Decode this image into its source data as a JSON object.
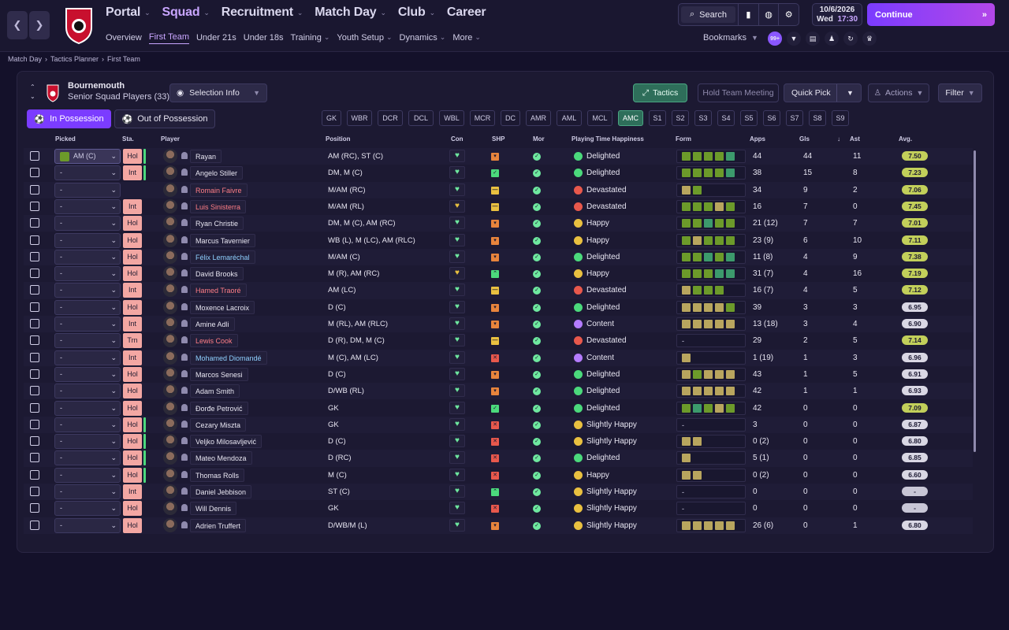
{
  "nav": {
    "main": [
      {
        "label": "Portal",
        "active": false
      },
      {
        "label": "Squad",
        "active": true
      },
      {
        "label": "Recruitment",
        "active": false
      },
      {
        "label": "Match Day",
        "active": false
      },
      {
        "label": "Club",
        "active": false
      },
      {
        "label": "Career",
        "active": false
      }
    ],
    "sub": [
      {
        "label": "Overview",
        "dropdown": false,
        "active": false
      },
      {
        "label": "First Team",
        "dropdown": false,
        "active": true
      },
      {
        "label": "Under 21s",
        "dropdown": false,
        "active": false
      },
      {
        "label": "Under 18s",
        "dropdown": false,
        "active": false
      },
      {
        "label": "Training",
        "dropdown": true,
        "active": false
      },
      {
        "label": "Youth Setup",
        "dropdown": true,
        "active": false
      },
      {
        "label": "Dynamics",
        "dropdown": true,
        "active": false
      },
      {
        "label": "More",
        "dropdown": true,
        "active": false
      }
    ]
  },
  "toolbar": {
    "search_label": "Search",
    "bookmarks_label": "Bookmarks",
    "badge_count": "99+"
  },
  "date": {
    "date": "10/6/2026",
    "day": "Wed",
    "time": "17:30"
  },
  "continue_label": "Continue",
  "breadcrumb": [
    "Match Day",
    "Tactics Planner",
    "First Team"
  ],
  "team": {
    "name": "Bournemouth",
    "subtitle": "Senior Squad Players (33)"
  },
  "buttons": {
    "selection_info": "Selection Info",
    "tactics": "Tactics",
    "hold_meeting": "Hold Team Meeting",
    "quick_pick": "Quick Pick",
    "actions": "Actions",
    "filter": "Filter",
    "in_possession": "In Possession",
    "out_of_possession": "Out of Possession"
  },
  "positions": [
    "GK",
    "WBR",
    "DCR",
    "DCL",
    "WBL",
    "MCR",
    "DC",
    "AMR",
    "AML",
    "MCL",
    "AMC",
    "S1",
    "S2",
    "S3",
    "S4",
    "S5",
    "S6",
    "S7",
    "S8",
    "S9"
  ],
  "active_position": "AMC",
  "columns": {
    "picked": "Picked",
    "sta": "Sta.",
    "player": "Player",
    "position": "Position",
    "con": "Con",
    "shp": "SHP",
    "mor": "Mor",
    "happiness": "Playing Time Happiness",
    "form": "Form",
    "apps": "Apps",
    "gls": "Gls",
    "ast": "Ast",
    "avg": "Avg."
  },
  "colors": {
    "accent": "#7b3cff",
    "tactics_green": "#2e6e5a",
    "status_red": "#f3a7a3",
    "form_green": "#6c9a2a",
    "form_teal": "#3c9a6c",
    "form_olive": "#b8a55e"
  },
  "players": [
    {
      "picked": "AM (C)",
      "sta": "Hol",
      "name": "Rayan",
      "name_style": "normal",
      "position": "AM (RC), ST (C)",
      "con": "good",
      "shp": "up",
      "happiness": "Delighted",
      "form": [
        "g",
        "g",
        "g",
        "g",
        "t"
      ],
      "apps": "44",
      "gls": "44",
      "ast": "11",
      "avg": "7.50"
    },
    {
      "picked": "-",
      "sta": "Int",
      "name": "Angelo Stiller",
      "name_style": "normal",
      "position": "DM, M (C)",
      "con": "good",
      "shp": "ok",
      "happiness": "Delighted",
      "form": [
        "g",
        "g",
        "g",
        "g",
        "t"
      ],
      "apps": "38",
      "gls": "15",
      "ast": "8",
      "avg": "7.23"
    },
    {
      "picked": "-",
      "sta": "",
      "name": "Romain Faivre",
      "name_style": "red",
      "position": "M/AM (RC)",
      "con": "good",
      "shp": "neutral",
      "happiness": "Devastated",
      "form": [
        "o",
        "g"
      ],
      "apps": "34",
      "gls": "9",
      "ast": "2",
      "avg": "7.06"
    },
    {
      "picked": "-",
      "sta": "Int",
      "name": "Luis Sinisterra",
      "name_style": "red",
      "position": "M/AM (RL)",
      "con": "warn",
      "shp": "neutral",
      "happiness": "Devastated",
      "form": [
        "g",
        "g",
        "g",
        "o",
        "g"
      ],
      "apps": "16",
      "gls": "7",
      "ast": "0",
      "avg": "7.45"
    },
    {
      "picked": "-",
      "sta": "Hol",
      "name": "Ryan Christie",
      "name_style": "normal",
      "position": "DM, M (C), AM (RC)",
      "con": "good",
      "shp": "up",
      "happiness": "Happy",
      "form": [
        "g",
        "g",
        "t",
        "g",
        "g"
      ],
      "apps": "21 (12)",
      "gls": "7",
      "ast": "7",
      "avg": "7.01"
    },
    {
      "picked": "-",
      "sta": "Hol",
      "name": "Marcus Tavernier",
      "name_style": "normal",
      "position": "WB (L), M (LC), AM (RLC)",
      "con": "good",
      "shp": "up",
      "happiness": "Happy",
      "form": [
        "g",
        "o",
        "g",
        "g",
        "g"
      ],
      "apps": "23 (9)",
      "gls": "6",
      "ast": "10",
      "avg": "7.11"
    },
    {
      "picked": "-",
      "sta": "Hol",
      "name": "Félix Lemaréchal",
      "name_style": "blue",
      "position": "M/AM (C)",
      "con": "good",
      "shp": "up",
      "happiness": "Delighted",
      "form": [
        "g",
        "g",
        "t",
        "g",
        "t"
      ],
      "apps": "11 (8)",
      "gls": "4",
      "ast": "9",
      "avg": "7.38"
    },
    {
      "picked": "-",
      "sta": "Hol",
      "name": "David Brooks",
      "name_style": "normal",
      "position": "M (R), AM (RC)",
      "con": "warn",
      "shp": "green",
      "happiness": "Happy",
      "form": [
        "g",
        "g",
        "g",
        "t",
        "t"
      ],
      "apps": "31 (7)",
      "gls": "4",
      "ast": "16",
      "avg": "7.19"
    },
    {
      "picked": "-",
      "sta": "Int",
      "name": "Hamed Traoré",
      "name_style": "red",
      "position": "AM (LC)",
      "con": "good",
      "shp": "neutral",
      "happiness": "Devastated",
      "form": [
        "o",
        "g",
        "g",
        "g"
      ],
      "apps": "16 (7)",
      "gls": "4",
      "ast": "5",
      "avg": "7.12"
    },
    {
      "picked": "-",
      "sta": "Hol",
      "name": "Moxence Lacroix",
      "name_style": "normal",
      "position": "D (C)",
      "con": "good",
      "shp": "up",
      "happiness": "Delighted",
      "form": [
        "o",
        "o",
        "o",
        "o",
        "g"
      ],
      "apps": "39",
      "gls": "3",
      "ast": "3",
      "avg": "6.95"
    },
    {
      "picked": "-",
      "sta": "Int",
      "name": "Amine Adli",
      "name_style": "normal",
      "position": "M (RL), AM (RLC)",
      "con": "good",
      "shp": "up",
      "happiness": "Content",
      "form": [
        "o",
        "o",
        "o",
        "o",
        "o"
      ],
      "apps": "13 (18)",
      "gls": "3",
      "ast": "4",
      "avg": "6.90"
    },
    {
      "picked": "-",
      "sta": "Trn",
      "name": "Lewis Cook",
      "name_style": "red",
      "position": "D (R), DM, M (C)",
      "con": "good",
      "shp": "neutral",
      "happiness": "Devastated",
      "form": [],
      "apps": "29",
      "gls": "2",
      "ast": "5",
      "avg": "7.14"
    },
    {
      "picked": "-",
      "sta": "Int",
      "name": "Mohamed Diomandé",
      "name_style": "blue",
      "position": "M (C), AM (LC)",
      "con": "good",
      "shp": "bad",
      "happiness": "Content",
      "form": [
        "o"
      ],
      "apps": "1 (19)",
      "gls": "1",
      "ast": "3",
      "avg": "6.96"
    },
    {
      "picked": "-",
      "sta": "Hol",
      "name": "Marcos Senesi",
      "name_style": "normal",
      "position": "D (C)",
      "con": "good",
      "shp": "up",
      "happiness": "Delighted",
      "form": [
        "o",
        "g",
        "o",
        "o",
        "o"
      ],
      "apps": "43",
      "gls": "1",
      "ast": "5",
      "avg": "6.91"
    },
    {
      "picked": "-",
      "sta": "Hol",
      "name": "Adam Smith",
      "name_style": "normal",
      "position": "D/WB (RL)",
      "con": "good",
      "shp": "up",
      "happiness": "Delighted",
      "form": [
        "o",
        "o",
        "o",
        "o",
        "o"
      ],
      "apps": "42",
      "gls": "1",
      "ast": "1",
      "avg": "6.93"
    },
    {
      "picked": "-",
      "sta": "Hol",
      "name": "Đorđe Petrović",
      "name_style": "normal",
      "position": "GK",
      "con": "good",
      "shp": "ok",
      "happiness": "Delighted",
      "form": [
        "g",
        "t",
        "g",
        "o",
        "g"
      ],
      "apps": "42",
      "gls": "0",
      "ast": "0",
      "avg": "7.09"
    },
    {
      "picked": "-",
      "sta": "Hol",
      "name": "Cezary Miszta",
      "name_style": "normal",
      "position": "GK",
      "con": "good",
      "shp": "bad",
      "happiness": "Slightly Happy",
      "form": [],
      "apps": "3",
      "gls": "0",
      "ast": "0",
      "avg": "6.87"
    },
    {
      "picked": "-",
      "sta": "Hol",
      "name": "Veljko Milosavljević",
      "name_style": "normal",
      "position": "D (C)",
      "con": "good",
      "shp": "bad",
      "happiness": "Slightly Happy",
      "form": [
        "o",
        "o"
      ],
      "apps": "0 (2)",
      "gls": "0",
      "ast": "0",
      "avg": "6.80"
    },
    {
      "picked": "-",
      "sta": "Hol",
      "name": "Mateo Mendoza",
      "name_style": "normal",
      "position": "D (RC)",
      "con": "good",
      "shp": "bad",
      "happiness": "Delighted",
      "form": [
        "o"
      ],
      "apps": "5 (1)",
      "gls": "0",
      "ast": "0",
      "avg": "6.85"
    },
    {
      "picked": "-",
      "sta": "Hol",
      "name": "Thomas Rolls",
      "name_style": "normal",
      "position": "M (C)",
      "con": "good",
      "shp": "bad",
      "happiness": "Happy",
      "form": [
        "o",
        "o"
      ],
      "apps": "0 (2)",
      "gls": "0",
      "ast": "0",
      "avg": "6.60"
    },
    {
      "picked": "-",
      "sta": "Int",
      "name": "Daniel Jebbison",
      "name_style": "normal",
      "position": "ST (C)",
      "con": "good",
      "shp": "green",
      "happiness": "Slightly Happy",
      "form": [],
      "apps": "0",
      "gls": "0",
      "ast": "0",
      "avg": "-"
    },
    {
      "picked": "-",
      "sta": "Hol",
      "name": "Will Dennis",
      "name_style": "normal",
      "position": "GK",
      "con": "good",
      "shp": "bad",
      "happiness": "Slightly Happy",
      "form": [],
      "apps": "0",
      "gls": "0",
      "ast": "0",
      "avg": "-"
    },
    {
      "picked": "-",
      "sta": "Hol",
      "name": "Adrien Truffert",
      "name_style": "normal",
      "position": "D/WB/M (L)",
      "con": "good",
      "shp": "up",
      "happiness": "Slightly Happy",
      "form": [
        "o",
        "o",
        "o",
        "o",
        "o"
      ],
      "apps": "26 (6)",
      "gls": "0",
      "ast": "1",
      "avg": "6.80"
    }
  ]
}
